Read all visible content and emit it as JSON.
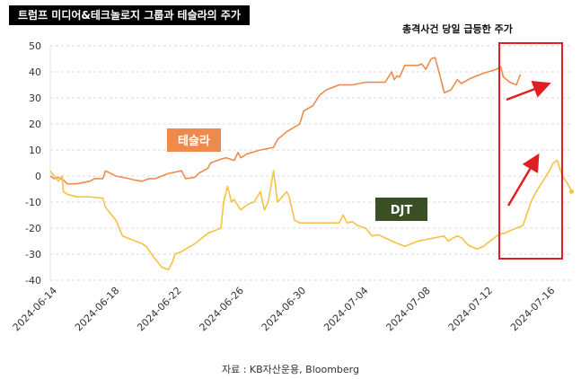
{
  "title": "트럼프 미디어&테크놀로지 그룹과 테슬라의 주가",
  "annotation": "총격사건 당일 급등한 주가",
  "source": "자료 : KB자산운용, Bloomberg",
  "colors": {
    "tesla": "#ef8a4e",
    "djt": "#f6c244",
    "highlight": "#e02020",
    "arrow": "#e02020",
    "tesla_label_bg": "#ef8a4e",
    "djt_label_bg": "#3a4f24",
    "grid": "#d9d9d9"
  },
  "chart_data": {
    "type": "line",
    "title": "트럼프 미디어&테크놀로지 그룹과 테슬라의 주가",
    "xlabel": "",
    "ylabel": "",
    "ylim": [
      -40,
      50
    ],
    "yticks": [
      "50",
      "40",
      "30",
      "20",
      "10",
      "0",
      "-10",
      "-20",
      "-30",
      "-40"
    ],
    "x_range": [
      "2024-06-14",
      "2024-07-17"
    ],
    "xticks": [
      "2024-06-14",
      "2024-06-18",
      "2024-06-22",
      "2024-06-26",
      "2024-06-30",
      "2024-07-04",
      "2024-07-08",
      "2024-07-12",
      "2024-07-16"
    ],
    "highlight": {
      "label": "총격사건 당일 급등한 주가",
      "x_from": "2024-07-13.1",
      "x_to": "2024-07-17"
    },
    "series": [
      {
        "name": "테슬라",
        "label": "테슬라",
        "points": [
          [
            0,
            0
          ],
          [
            0.3,
            -1
          ],
          [
            0.6,
            -0.5
          ],
          [
            1,
            -1.5
          ],
          [
            1.3,
            -3
          ],
          [
            2,
            -3
          ],
          [
            3,
            -2
          ],
          [
            3.4,
            -1
          ],
          [
            4,
            -1
          ],
          [
            4.2,
            2
          ],
          [
            5,
            0
          ],
          [
            6,
            -1
          ],
          [
            6.4,
            -1.5
          ],
          [
            7,
            -2
          ],
          [
            7.5,
            -1
          ],
          [
            8,
            -1
          ],
          [
            9,
            1
          ],
          [
            10,
            2
          ],
          [
            10.3,
            -1
          ],
          [
            11,
            -0.5
          ],
          [
            11.3,
            1
          ],
          [
            12,
            3
          ],
          [
            12.2,
            5
          ],
          [
            13,
            6.5
          ],
          [
            13.4,
            7
          ],
          [
            14,
            6
          ],
          [
            14.3,
            9
          ],
          [
            14.5,
            7
          ],
          [
            15,
            8.5
          ],
          [
            16,
            10
          ],
          [
            17,
            11
          ],
          [
            17.3,
            14
          ],
          [
            18,
            17
          ],
          [
            19,
            20
          ],
          [
            19.3,
            25
          ],
          [
            20,
            27
          ],
          [
            20.5,
            31
          ],
          [
            21,
            33
          ],
          [
            22,
            35
          ],
          [
            22.3,
            35
          ],
          [
            23,
            35
          ],
          [
            24,
            36
          ],
          [
            24.3,
            36
          ],
          [
            25,
            36
          ],
          [
            25.5,
            36
          ],
          [
            26,
            40
          ],
          [
            26.2,
            37
          ],
          [
            26.4,
            38.5
          ],
          [
            26.6,
            38
          ],
          [
            27,
            42.5
          ],
          [
            28,
            42.5
          ],
          [
            28.3,
            43
          ],
          [
            28.6,
            41
          ],
          [
            29,
            45
          ],
          [
            29.3,
            45.5
          ],
          [
            29.6,
            40
          ],
          [
            30,
            32
          ],
          [
            30.5,
            33
          ],
          [
            31,
            37
          ],
          [
            31.3,
            35.5
          ],
          [
            32,
            37.5
          ],
          [
            33,
            39.5
          ],
          [
            34,
            41
          ],
          [
            34.3,
            42
          ],
          [
            34.5,
            38
          ],
          [
            35,
            36
          ],
          [
            35.5,
            35
          ],
          [
            35.8,
            39
          ]
        ]
      },
      {
        "name": "DJT",
        "label": "DJT",
        "points": [
          [
            0,
            2
          ],
          [
            0.3,
            0
          ],
          [
            0.6,
            -2
          ],
          [
            0.9,
            0
          ],
          [
            1,
            -6
          ],
          [
            1.3,
            -7
          ],
          [
            2,
            -8
          ],
          [
            3,
            -8
          ],
          [
            4,
            -8.5
          ],
          [
            4.2,
            -12
          ],
          [
            5,
            -17
          ],
          [
            5.5,
            -23
          ],
          [
            6,
            -24
          ],
          [
            7,
            -26
          ],
          [
            7.3,
            -27
          ],
          [
            8,
            -32
          ],
          [
            8.5,
            -35
          ],
          [
            9,
            -36
          ],
          [
            9.3,
            -33
          ],
          [
            9.5,
            -30
          ],
          [
            10,
            -29
          ],
          [
            11,
            -26
          ],
          [
            12,
            -22
          ],
          [
            13,
            -20
          ],
          [
            13.2,
            -10
          ],
          [
            13.5,
            -4
          ],
          [
            13.8,
            -10
          ],
          [
            14,
            -9
          ],
          [
            14.5,
            -13
          ],
          [
            15,
            -11
          ],
          [
            15.5,
            -10
          ],
          [
            16,
            -6
          ],
          [
            16.3,
            -13
          ],
          [
            16.6,
            -10
          ],
          [
            17,
            2
          ],
          [
            17.3,
            -10
          ],
          [
            18,
            -6
          ],
          [
            18.2,
            -8
          ],
          [
            18.6,
            -17
          ],
          [
            19,
            -18
          ],
          [
            20,
            -18
          ],
          [
            21,
            -18
          ],
          [
            22,
            -18
          ],
          [
            22.3,
            -15
          ],
          [
            22.6,
            -18
          ],
          [
            23,
            -17.5
          ],
          [
            23.4,
            -19
          ],
          [
            24,
            -20
          ],
          [
            24.5,
            -23
          ],
          [
            25,
            -22.5
          ],
          [
            26,
            -25
          ],
          [
            26.5,
            -26
          ],
          [
            27,
            -27
          ],
          [
            28,
            -25
          ],
          [
            29,
            -24
          ],
          [
            30,
            -23
          ],
          [
            30.3,
            -25
          ],
          [
            30.6,
            -24
          ],
          [
            31,
            -23
          ],
          [
            31.4,
            -24
          ],
          [
            31.7,
            -26
          ],
          [
            32,
            -27
          ],
          [
            32.5,
            -28
          ],
          [
            33,
            -27
          ],
          [
            33.2,
            -26
          ],
          [
            33.5,
            -25
          ],
          [
            34,
            -23
          ],
          [
            34.4,
            -22
          ],
          [
            34.6,
            -22
          ],
          [
            35,
            -21
          ],
          [
            35.5,
            -20
          ],
          [
            36,
            -19
          ],
          [
            36.4,
            -13
          ],
          [
            36.6,
            -10
          ],
          [
            37,
            -6
          ],
          [
            37.5,
            -2
          ],
          [
            38,
            2
          ],
          [
            38.3,
            5
          ],
          [
            38.6,
            6
          ],
          [
            39,
            0
          ],
          [
            39.4,
            -3
          ],
          [
            39.7,
            -6
          ]
        ]
      }
    ]
  }
}
